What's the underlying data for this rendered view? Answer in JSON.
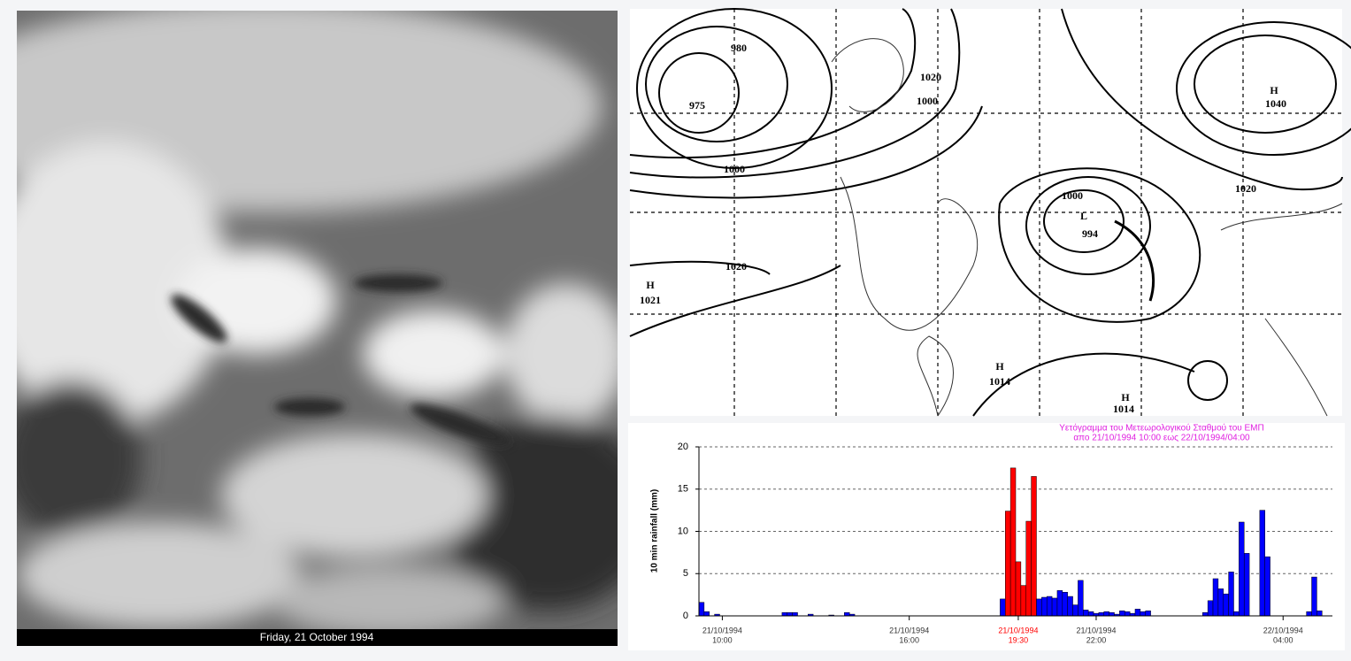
{
  "satellite": {
    "caption": "Friday, 21 October 1994"
  },
  "map": {
    "labels": [
      "980",
      "975",
      "1000",
      "1000",
      "1020",
      "H",
      "1040",
      "1020",
      "1020",
      "H",
      "1021",
      "1000",
      "L",
      "994",
      "H",
      "1014",
      "H",
      "1014"
    ]
  },
  "chart_data": {
    "type": "bar",
    "title": [
      "Υετόγραμμα του Μετεωρολογικού Σταθμού του ΕΜΠ",
      "απο 21/10/1994 10:00 εως 22/10/1994/04:00"
    ],
    "y_label": "10 min rainfall (mm)",
    "categories": [
      null,
      null,
      null,
      null,
      [
        "21/10/1994",
        "10:00"
      ],
      null,
      null,
      null,
      null,
      null,
      null,
      null,
      null,
      null,
      null,
      null,
      null,
      null,
      null,
      null,
      null,
      null,
      null,
      null,
      null,
      null,
      null,
      null,
      null,
      null,
      null,
      null,
      null,
      null,
      null,
      null,
      null,
      null,
      null,
      null,
      [
        "21/10/1994",
        "16:00"
      ],
      null,
      null,
      null,
      null,
      null,
      null,
      null,
      null,
      null,
      null,
      null,
      null,
      null,
      null,
      null,
      null,
      null,
      null,
      null,
      null,
      [
        "21/10/1994",
        "19:30"
      ],
      null,
      null,
      null,
      null,
      null,
      null,
      null,
      null,
      null,
      null,
      null,
      null,
      null,
      null,
      [
        "21/10/1994",
        "22:00"
      ],
      null,
      null,
      null,
      null,
      null,
      null,
      null,
      null,
      null,
      null,
      null,
      null,
      null,
      null,
      null,
      null,
      null,
      null,
      null,
      null,
      null,
      null,
      null,
      null,
      null,
      null,
      null,
      null,
      null,
      null,
      null,
      null,
      null,
      null,
      null,
      [
        "22/10/1994",
        "04:00"
      ],
      null,
      null,
      null,
      null,
      null,
      null,
      null,
      null,
      null
    ],
    "values": [
      1.6,
      0.5,
      0,
      0.2,
      0,
      0,
      0,
      0,
      0,
      0,
      0,
      0,
      0,
      0,
      0,
      0,
      0.4,
      0.4,
      0.4,
      0,
      0,
      0.2,
      0,
      0,
      0,
      0.1,
      0,
      0,
      0.4,
      0.2,
      0,
      0,
      0,
      0,
      0,
      0,
      0,
      0,
      0,
      0,
      0,
      0,
      0,
      0,
      0,
      0,
      0,
      0,
      0,
      0,
      0,
      0,
      0,
      0,
      0,
      0,
      0,
      0,
      2.0,
      12.4,
      17.5,
      6.4,
      3.6,
      11.2,
      16.5,
      2.0,
      2.2,
      2.3,
      2.1,
      3.0,
      2.8,
      2.3,
      1.3,
      4.2,
      0.7,
      0.5,
      0.3,
      0.4,
      0.5,
      0.4,
      0.2,
      0.6,
      0.5,
      0.3,
      0.8,
      0.5,
      0.6,
      0,
      0,
      0,
      0,
      0,
      0,
      0,
      0,
      0,
      0,
      0.4,
      1.8,
      4.4,
      3.2,
      2.6,
      5.2,
      0.5,
      11.1,
      7.4,
      0,
      0,
      12.5,
      7.0,
      0,
      0,
      0,
      0,
      0,
      0,
      0,
      0.5,
      4.6,
      0.6,
      0,
      0
    ],
    "colors": [
      "#0000ff",
      "#0000ff",
      "#0000ff",
      "#0000ff",
      "#0000ff",
      "#0000ff",
      "#0000ff",
      "#0000ff",
      "#0000ff",
      "#0000ff",
      "#0000ff",
      "#0000ff",
      "#0000ff",
      "#0000ff",
      "#0000ff",
      "#0000ff",
      "#0000ff",
      "#0000ff",
      "#0000ff",
      "#0000ff",
      "#0000ff",
      "#0000ff",
      "#0000ff",
      "#0000ff",
      "#0000ff",
      "#0000ff",
      "#0000ff",
      "#0000ff",
      "#0000ff",
      "#0000ff",
      "#0000ff",
      "#0000ff",
      "#0000ff",
      "#0000ff",
      "#0000ff",
      "#0000ff",
      "#0000ff",
      "#0000ff",
      "#0000ff",
      "#0000ff",
      "#0000ff",
      "#0000ff",
      "#0000ff",
      "#0000ff",
      "#0000ff",
      "#0000ff",
      "#0000ff",
      "#0000ff",
      "#0000ff",
      "#0000ff",
      "#0000ff",
      "#0000ff",
      "#0000ff",
      "#0000ff",
      "#0000ff",
      "#0000ff",
      "#0000ff",
      "#0000ff",
      "#0000ff",
      "#ff0000",
      "#ff0000",
      "#ff0000",
      "#ff0000",
      "#ff0000",
      "#ff0000",
      "#0000ff",
      "#0000ff",
      "#0000ff",
      "#0000ff",
      "#0000ff",
      "#0000ff",
      "#0000ff",
      "#0000ff",
      "#0000ff",
      "#0000ff",
      "#0000ff",
      "#0000ff",
      "#0000ff",
      "#0000ff",
      "#0000ff",
      "#0000ff",
      "#0000ff",
      "#0000ff",
      "#0000ff",
      "#0000ff",
      "#0000ff",
      "#0000ff",
      "#0000ff",
      "#0000ff",
      "#0000ff",
      "#0000ff",
      "#0000ff",
      "#0000ff",
      "#0000ff",
      "#0000ff",
      "#0000ff",
      "#0000ff",
      "#0000ff",
      "#0000ff",
      "#0000ff",
      "#0000ff",
      "#0000ff",
      "#0000ff",
      "#0000ff",
      "#0000ff",
      "#0000ff",
      "#0000ff",
      "#0000ff",
      "#0000ff",
      "#0000ff",
      "#0000ff",
      "#0000ff",
      "#0000ff",
      "#0000ff",
      "#0000ff",
      "#0000ff",
      "#0000ff",
      "#0000ff",
      "#0000ff",
      "#0000ff",
      "#0000ff",
      "#0000ff"
    ],
    "ylim": [
      0,
      20
    ],
    "yticks": [
      0,
      5,
      10,
      15,
      20
    ],
    "grid": true,
    "title_color": "#e020e0"
  }
}
